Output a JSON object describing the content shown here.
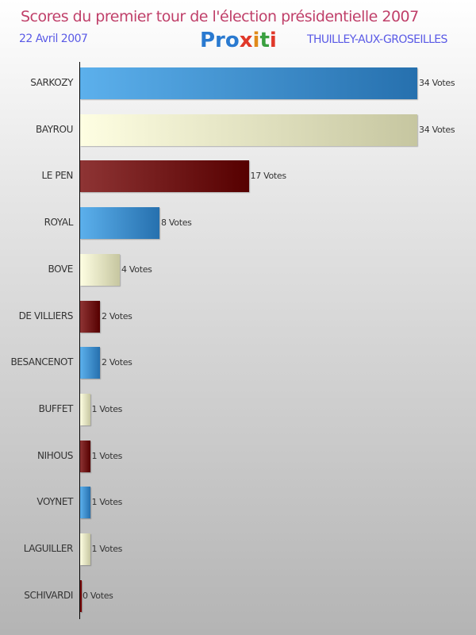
{
  "header": {
    "title": "Scores du premier tour de l'élection présidentielle 2007",
    "date": "22 Avril 2007",
    "logo": "Proxiti",
    "commune": "THUILLEY-AUX-GROSEILLES"
  },
  "chart_data": {
    "type": "bar",
    "orientation": "horizontal",
    "title": "Scores du premier tour de l'élection présidentielle 2007",
    "categories": [
      "SARKOZY",
      "BAYROU",
      "LE PEN",
      "ROYAL",
      "BOVE",
      "DE VILLIERS",
      "BESANCENOT",
      "BUFFET",
      "NIHOUS",
      "VOYNET",
      "LAGUILLER",
      "SCHIVARDI"
    ],
    "values": [
      34,
      34,
      17,
      8,
      4,
      2,
      2,
      1,
      1,
      1,
      1,
      0
    ],
    "value_suffix": " Votes",
    "colors": [
      [
        "#5cb0ec",
        "#2670ae"
      ],
      [
        "#fefee2",
        "#c6c6a0"
      ],
      [
        "#8e3434",
        "#560000"
      ]
    ],
    "xlim": [
      0,
      34
    ]
  }
}
